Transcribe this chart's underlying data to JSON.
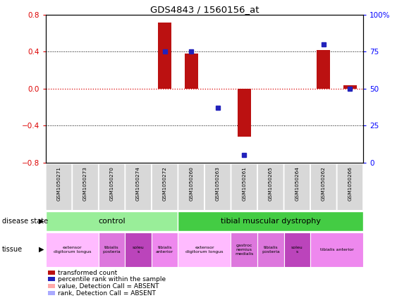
{
  "title": "GDS4843 / 1560156_at",
  "samples": [
    "GSM1050271",
    "GSM1050273",
    "GSM1050270",
    "GSM1050274",
    "GSM1050272",
    "GSM1050260",
    "GSM1050263",
    "GSM1050261",
    "GSM1050265",
    "GSM1050264",
    "GSM1050262",
    "GSM1050266"
  ],
  "bar_values": [
    0.0,
    0.0,
    0.0,
    0.0,
    0.72,
    0.38,
    0.0,
    -0.52,
    0.0,
    0.0,
    0.42,
    0.04
  ],
  "dot_values": [
    null,
    null,
    null,
    null,
    75,
    75,
    37,
    5,
    null,
    null,
    80,
    50
  ],
  "bar_color": "#bb1111",
  "dot_color": "#2222bb",
  "ylim": [
    -0.8,
    0.8
  ],
  "y2lim": [
    0,
    100
  ],
  "yticks": [
    -0.8,
    -0.4,
    0.0,
    0.4,
    0.8
  ],
  "y2ticks": [
    0,
    25,
    50,
    75,
    100
  ],
  "y2ticklabels": [
    "0",
    "25",
    "50",
    "75",
    "100%"
  ],
  "zero_line_color": "#dd0000",
  "grid_color": "#000000",
  "control_color": "#99ee99",
  "dystrophy_color": "#44cc44",
  "tissue_groups": [
    {
      "label": "extensor\ndigitorum longus",
      "start": 0,
      "end": 2,
      "color": "#ffbbff"
    },
    {
      "label": "tibialis\nposteria",
      "start": 2,
      "end": 3,
      "color": "#dd77dd"
    },
    {
      "label": "soleu\ns",
      "start": 3,
      "end": 4,
      "color": "#bb44bb"
    },
    {
      "label": "tibialis\nanterior",
      "start": 4,
      "end": 5,
      "color": "#ee88ee"
    },
    {
      "label": "extensor\ndigitorum longus",
      "start": 5,
      "end": 7,
      "color": "#ffbbff"
    },
    {
      "label": "gastroc\nnemius\nmedialis",
      "start": 7,
      "end": 8,
      "color": "#dd77dd"
    },
    {
      "label": "tibialis\nposteria",
      "start": 8,
      "end": 9,
      "color": "#dd77dd"
    },
    {
      "label": "soleu\ns",
      "start": 9,
      "end": 10,
      "color": "#bb44bb"
    },
    {
      "label": "tibialis anterior",
      "start": 10,
      "end": 12,
      "color": "#ee88ee"
    }
  ],
  "legend_items": [
    {
      "label": "transformed count",
      "color": "#bb1111"
    },
    {
      "label": "percentile rank within the sample",
      "color": "#2222bb"
    },
    {
      "label": "value, Detection Call = ABSENT",
      "color": "#ffaaaa"
    },
    {
      "label": "rank, Detection Call = ABSENT",
      "color": "#aaaaff"
    }
  ]
}
